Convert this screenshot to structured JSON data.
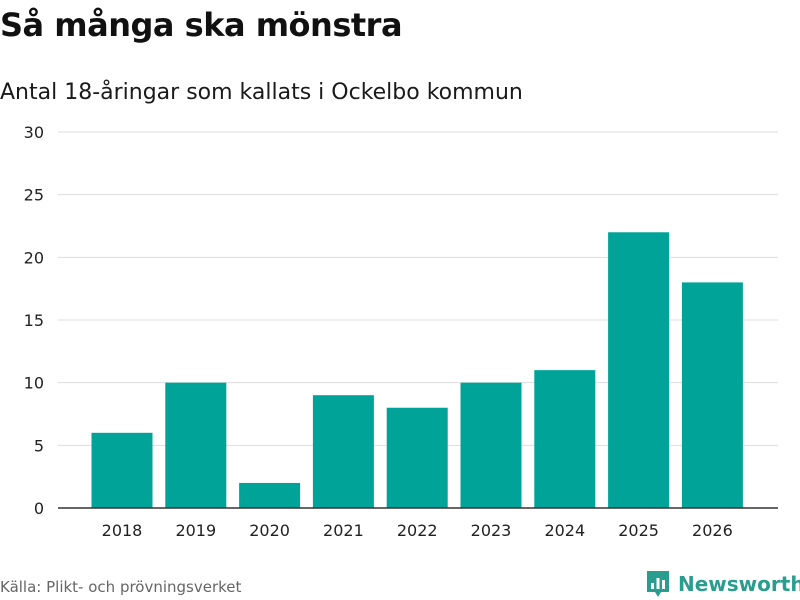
{
  "header": {
    "title": "Så många ska mönstra",
    "subtitle": "Antal 18-åringar som kallats i Ockelbo kommun"
  },
  "footer": {
    "source": "Källa: Plikt- och prövningsverket",
    "brand": "Newsworthy",
    "brand_icon": "bar-chart-bubble-icon"
  },
  "colors": {
    "bar": "#00a398",
    "grid": "#dddddd",
    "axis": "#333333",
    "brand": "#2a9d8f"
  },
  "chart_data": {
    "type": "bar",
    "title": "Så många ska mönstra",
    "subtitle": "Antal 18-åringar som kallats i Ockelbo kommun",
    "xlabel": "",
    "ylabel": "",
    "categories": [
      "2018",
      "2019",
      "2020",
      "2021",
      "2022",
      "2023",
      "2024",
      "2025",
      "2026"
    ],
    "values": [
      6,
      10,
      2,
      9,
      8,
      10,
      11,
      22,
      18
    ],
    "ylim": [
      0,
      30
    ],
    "yticks": [
      0,
      5,
      10,
      15,
      20,
      25,
      30
    ],
    "grid": true,
    "legend": "none"
  }
}
